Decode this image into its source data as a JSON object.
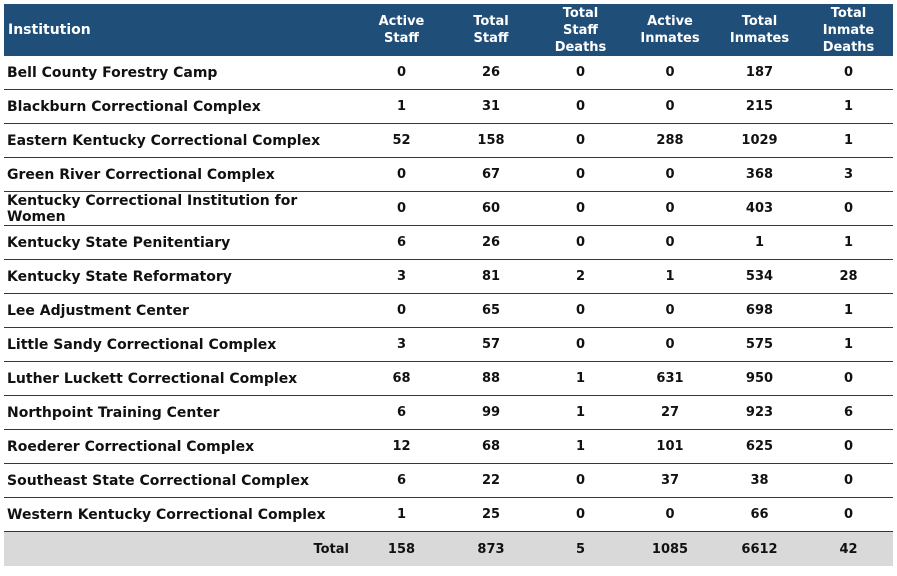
{
  "headers": {
    "institution": "Institution",
    "active_staff": [
      "Active",
      "Staff"
    ],
    "total_staff": [
      "Total",
      "Staff"
    ],
    "total_staff_deaths": [
      "Total",
      "Staff",
      "Deaths"
    ],
    "active_inmates": [
      "Active",
      "Inmates"
    ],
    "total_inmates": [
      "Total",
      "Inmates"
    ],
    "total_inmate_deaths": [
      "Total",
      "Inmate",
      "Deaths"
    ]
  },
  "rows": [
    {
      "name": "Bell County Forestry Camp",
      "active_staff": "0",
      "total_staff": "26",
      "staff_deaths": "0",
      "active_inmates": "0",
      "total_inmates": "187",
      "inmate_deaths": "0"
    },
    {
      "name": "Blackburn Correctional Complex",
      "active_staff": "1",
      "total_staff": "31",
      "staff_deaths": "0",
      "active_inmates": "0",
      "total_inmates": "215",
      "inmate_deaths": "1"
    },
    {
      "name": "Eastern Kentucky Correctional Complex",
      "active_staff": "52",
      "total_staff": "158",
      "staff_deaths": "0",
      "active_inmates": "288",
      "total_inmates": "1029",
      "inmate_deaths": "1"
    },
    {
      "name": "Green River Correctional Complex",
      "active_staff": "0",
      "total_staff": "67",
      "staff_deaths": "0",
      "active_inmates": "0",
      "total_inmates": "368",
      "inmate_deaths": "3"
    },
    {
      "name": "Kentucky Correctional Institution for Women",
      "active_staff": "0",
      "total_staff": "60",
      "staff_deaths": "0",
      "active_inmates": "0",
      "total_inmates": "403",
      "inmate_deaths": "0"
    },
    {
      "name": "Kentucky State Penitentiary",
      "active_staff": "6",
      "total_staff": "26",
      "staff_deaths": "0",
      "active_inmates": "0",
      "total_inmates": "1",
      "inmate_deaths": "1"
    },
    {
      "name": "Kentucky State Reformatory",
      "active_staff": "3",
      "total_staff": "81",
      "staff_deaths": "2",
      "active_inmates": "1",
      "total_inmates": "534",
      "inmate_deaths": "28"
    },
    {
      "name": "Lee Adjustment Center",
      "active_staff": "0",
      "total_staff": "65",
      "staff_deaths": "0",
      "active_inmates": "0",
      "total_inmates": "698",
      "inmate_deaths": "1"
    },
    {
      "name": "Little Sandy Correctional Complex",
      "active_staff": "3",
      "total_staff": "57",
      "staff_deaths": "0",
      "active_inmates": "0",
      "total_inmates": "575",
      "inmate_deaths": "1"
    },
    {
      "name": "Luther Luckett Correctional Complex",
      "active_staff": "68",
      "total_staff": "88",
      "staff_deaths": "1",
      "active_inmates": "631",
      "total_inmates": "950",
      "inmate_deaths": "0"
    },
    {
      "name": "Northpoint Training Center",
      "active_staff": "6",
      "total_staff": "99",
      "staff_deaths": "1",
      "active_inmates": "27",
      "total_inmates": "923",
      "inmate_deaths": "6"
    },
    {
      "name": "Roederer Correctional Complex",
      "active_staff": "12",
      "total_staff": "68",
      "staff_deaths": "1",
      "active_inmates": "101",
      "total_inmates": "625",
      "inmate_deaths": "0"
    },
    {
      "name": "Southeast State Correctional Complex",
      "active_staff": "6",
      "total_staff": "22",
      "staff_deaths": "0",
      "active_inmates": "37",
      "total_inmates": "38",
      "inmate_deaths": "0"
    },
    {
      "name": "Western Kentucky Correctional Complex",
      "active_staff": "1",
      "total_staff": "25",
      "staff_deaths": "0",
      "active_inmates": "0",
      "total_inmates": "66",
      "inmate_deaths": "0"
    }
  ],
  "totals": {
    "label": "Total",
    "active_staff": "158",
    "total_staff": "873",
    "staff_deaths": "5",
    "active_inmates": "1085",
    "total_inmates": "6612",
    "inmate_deaths": "42"
  },
  "colors": {
    "header_bg": "#1f4e79",
    "header_text": "#ffffff",
    "total_row_bg": "#d9d9d9",
    "row_divider": "#1f3b5a"
  }
}
